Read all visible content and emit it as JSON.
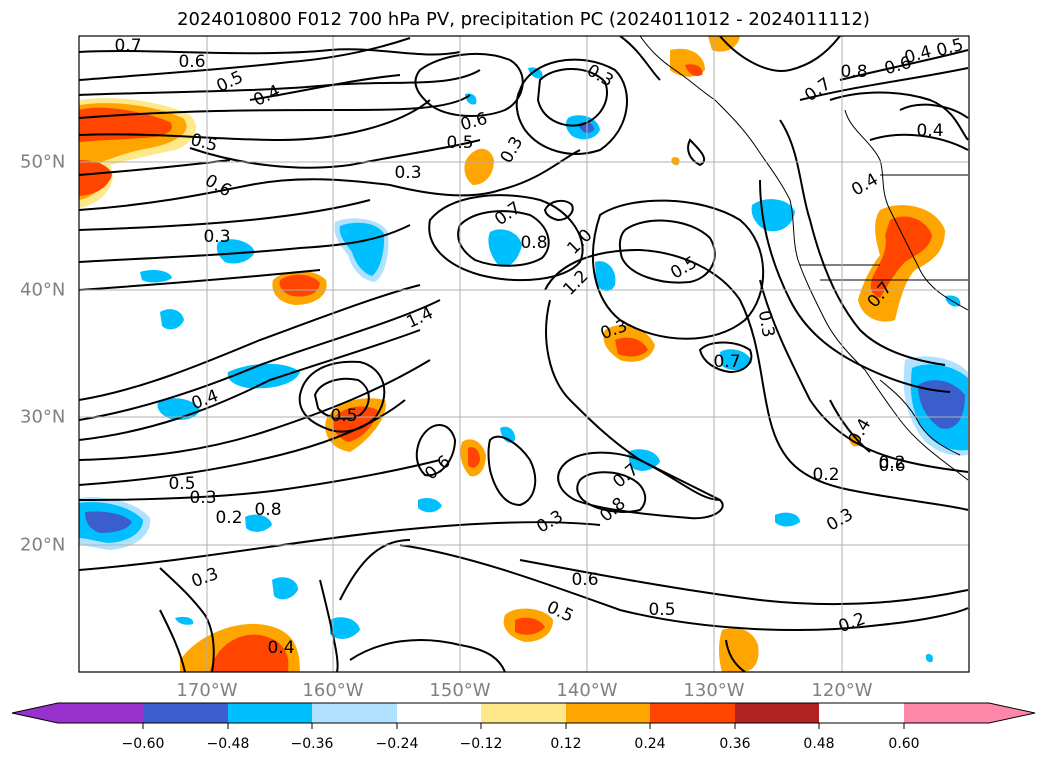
{
  "title": "2024010800 F012 700 hPa PV, precipitation PC (2024011012 - 2024011112)",
  "map": {
    "lon_labels": [
      "170°W",
      "160°W",
      "150°W",
      "140°W",
      "130°W",
      "120°W"
    ],
    "lat_labels": [
      "50°N",
      "40°N",
      "30°N",
      "20°N"
    ],
    "contour_labels": [
      "0.7",
      "0.6",
      "0.5",
      "0.4",
      "0.5",
      "0.6",
      "0.3",
      "0.3",
      "0.6",
      "0.5",
      "0.3",
      "0.7",
      "0.8",
      "0.6",
      "0.4",
      "0.5",
      "0.4",
      "0.4",
      "0.3",
      "0.7",
      "0.8",
      "1.0",
      "1.2",
      "1.4",
      "0.5",
      "0.7",
      "0.4",
      "0.2",
      "0.2",
      "0.3",
      "0.7",
      "0.6",
      "0.5",
      "0.3",
      "0.2",
      "0.8",
      "0.3",
      "0.4",
      "0.5",
      "0.3",
      "0.7",
      "0.8",
      "0.6",
      "0.5",
      "0.5",
      "0.2",
      "0.4",
      "0.3",
      "0.3",
      "0.6"
    ]
  },
  "colorbar": {
    "ticks": [
      "−0.60",
      "−0.48",
      "−0.36",
      "−0.24",
      "−0.12",
      "0.12",
      "0.24",
      "0.36",
      "0.48",
      "0.60"
    ],
    "colors": [
      "#9932cc",
      "#00008b",
      "#3a5fcd",
      "#00bfff",
      "#b0e2ff",
      "#ffffff",
      "#ffe88a",
      "#ffa500",
      "#ff4500",
      "#b22222",
      "#ff88aa"
    ]
  }
}
